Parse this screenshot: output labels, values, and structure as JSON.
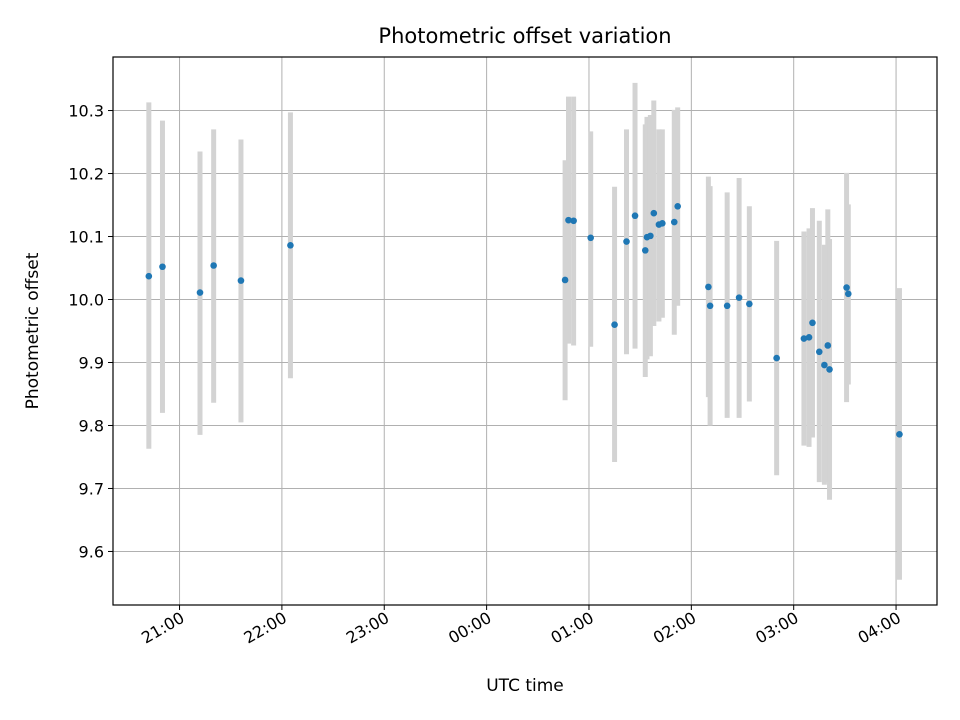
{
  "chart_data": {
    "type": "scatter",
    "title": "Photometric offset variation",
    "xlabel": "UTC time",
    "ylabel": "Photometric offset",
    "x_ticks": [
      "21:00",
      "22:00",
      "23:00",
      "00:00",
      "01:00",
      "02:00",
      "03:00",
      "04:00"
    ],
    "x_tick_hours": [
      21,
      22,
      23,
      24,
      25,
      26,
      27,
      28
    ],
    "xlim": [
      20.35,
      28.4
    ],
    "y_ticks": [
      "9.6",
      "9.7",
      "9.8",
      "9.9",
      "10.0",
      "10.1",
      "10.2",
      "10.3"
    ],
    "ylim": [
      9.515,
      10.385
    ],
    "grid": true,
    "point_color": "#1f77b4",
    "errorbar_color": "#d3d3d3",
    "points": [
      {
        "t": "20:42",
        "y": 10.037,
        "lo": 9.763,
        "hi": 10.313
      },
      {
        "t": "20:50",
        "y": 10.052,
        "lo": 9.82,
        "hi": 10.284
      },
      {
        "t": "21:12",
        "y": 10.011,
        "lo": 9.785,
        "hi": 10.235
      },
      {
        "t": "21:20",
        "y": 10.054,
        "lo": 9.836,
        "hi": 10.27
      },
      {
        "t": "21:36",
        "y": 10.03,
        "lo": 9.805,
        "hi": 10.254
      },
      {
        "t": "22:05",
        "y": 10.086,
        "lo": 9.875,
        "hi": 10.297
      },
      {
        "t": "00:46",
        "y": 10.031,
        "lo": 9.84,
        "hi": 10.221
      },
      {
        "t": "00:48",
        "y": 10.126,
        "lo": 9.93,
        "hi": 10.322
      },
      {
        "t": "00:51",
        "y": 10.125,
        "lo": 9.927,
        "hi": 10.322
      },
      {
        "t": "01:01",
        "y": 10.098,
        "lo": 9.925,
        "hi": 10.267
      },
      {
        "t": "01:15",
        "y": 9.96,
        "lo": 9.742,
        "hi": 10.179
      },
      {
        "t": "01:22",
        "y": 10.092,
        "lo": 9.913,
        "hi": 10.27
      },
      {
        "t": "01:27",
        "y": 10.133,
        "lo": 9.922,
        "hi": 10.344
      },
      {
        "t": "01:33",
        "y": 10.078,
        "lo": 9.877,
        "hi": 10.278
      },
      {
        "t": "01:34",
        "y": 10.099,
        "lo": 9.905,
        "hi": 10.29
      },
      {
        "t": "01:36",
        "y": 10.101,
        "lo": 9.91,
        "hi": 10.293
      },
      {
        "t": "01:38",
        "y": 10.137,
        "lo": 9.958,
        "hi": 10.316
      },
      {
        "t": "01:41",
        "y": 10.119,
        "lo": 9.965,
        "hi": 10.27
      },
      {
        "t": "01:43",
        "y": 10.121,
        "lo": 9.971,
        "hi": 10.27
      },
      {
        "t": "01:50",
        "y": 10.123,
        "lo": 9.944,
        "hi": 10.301
      },
      {
        "t": "01:52",
        "y": 10.148,
        "lo": 9.99,
        "hi": 10.305
      },
      {
        "t": "02:10",
        "y": 10.02,
        "lo": 9.845,
        "hi": 10.195
      },
      {
        "t": "02:11",
        "y": 9.99,
        "lo": 9.8,
        "hi": 10.18
      },
      {
        "t": "02:21",
        "y": 9.99,
        "lo": 9.812,
        "hi": 10.17
      },
      {
        "t": "02:28",
        "y": 10.003,
        "lo": 9.812,
        "hi": 10.193
      },
      {
        "t": "02:34",
        "y": 9.993,
        "lo": 9.838,
        "hi": 10.148
      },
      {
        "t": "02:50",
        "y": 9.907,
        "lo": 9.721,
        "hi": 10.093
      },
      {
        "t": "03:06",
        "y": 9.938,
        "lo": 9.768,
        "hi": 10.108
      },
      {
        "t": "03:09",
        "y": 9.94,
        "lo": 9.766,
        "hi": 10.113
      },
      {
        "t": "03:11",
        "y": 9.963,
        "lo": 9.781,
        "hi": 10.145
      },
      {
        "t": "03:15",
        "y": 9.917,
        "lo": 9.71,
        "hi": 10.125
      },
      {
        "t": "03:18",
        "y": 9.896,
        "lo": 9.706,
        "hi": 10.087
      },
      {
        "t": "03:20",
        "y": 9.927,
        "lo": 9.71,
        "hi": 10.143
      },
      {
        "t": "03:21",
        "y": 9.889,
        "lo": 9.682,
        "hi": 10.096
      },
      {
        "t": "03:31",
        "y": 10.019,
        "lo": 9.837,
        "hi": 10.201
      },
      {
        "t": "03:32",
        "y": 10.009,
        "lo": 9.865,
        "hi": 10.151
      },
      {
        "t": "04:02",
        "y": 9.786,
        "lo": 9.555,
        "hi": 10.018
      }
    ]
  }
}
